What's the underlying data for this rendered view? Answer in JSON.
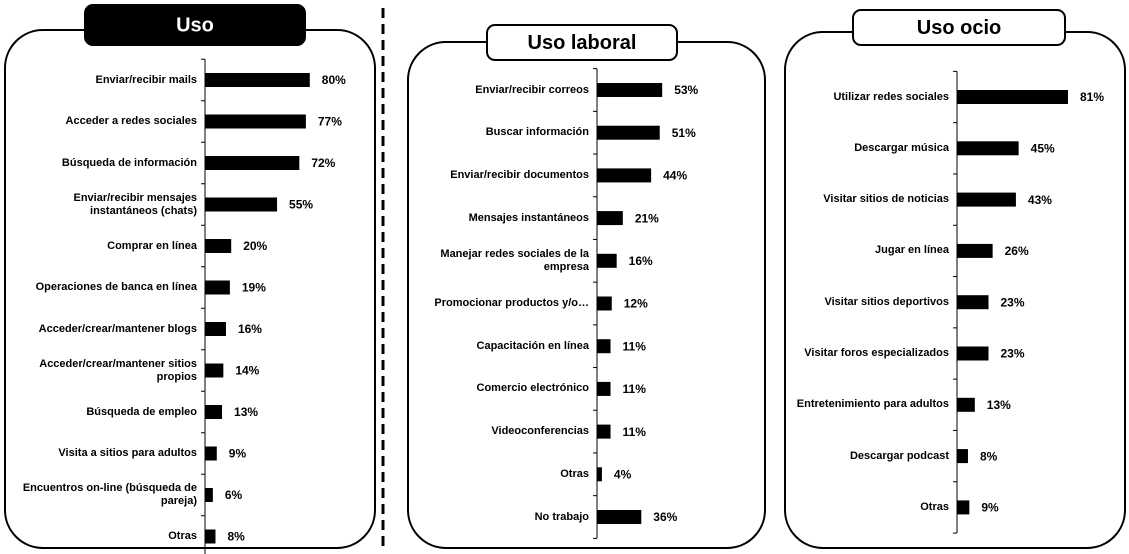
{
  "chart_data": [
    {
      "type": "bar",
      "title": "Uso",
      "color": "#000000",
      "categories": [
        "Enviar/recibir mails",
        "Acceder a redes sociales",
        "Búsqueda de información",
        "Enviar/recibir mensajes instantáneos (chats)",
        "Comprar en línea",
        "Operaciones de banca en línea",
        "Acceder/crear/mantener blogs",
        "Acceder/crear/mantener sitios propios",
        "Búsqueda de empleo",
        "Visita a sitios para adultos",
        "Encuentros on-line (búsqueda de pareja)",
        "Otras"
      ],
      "values": [
        80,
        77,
        72,
        55,
        20,
        19,
        16,
        14,
        13,
        9,
        6,
        8
      ],
      "value_labels": [
        "80%",
        "77%",
        "72%",
        "55%",
        "20%",
        "19%",
        "16%",
        "14%",
        "13%",
        "9%",
        "6%",
        "8%"
      ]
    },
    {
      "type": "bar",
      "title": "Uso laboral",
      "color": "#000000",
      "categories": [
        "Enviar/recibir correos",
        "Buscar información",
        "Enviar/recibir documentos",
        "Mensajes instantáneos",
        "Manejar redes sociales de la empresa",
        "Promocionar productos y/o…",
        "Capacitación en línea",
        "Comercio electrónico",
        "Videoconferencias",
        "Otras",
        "No trabajo"
      ],
      "values": [
        53,
        51,
        44,
        21,
        16,
        12,
        11,
        11,
        11,
        4,
        36
      ],
      "value_labels": [
        "53%",
        "51%",
        "44%",
        "21%",
        "16%",
        "12%",
        "11%",
        "11%",
        "11%",
        "4%",
        "36%"
      ]
    },
    {
      "type": "bar",
      "title": "Uso ocio",
      "color": "#000000",
      "categories": [
        "Utilizar redes sociales",
        "Descargar música",
        "Visitar sitios de noticias",
        "Jugar en línea",
        "Visitar sitios deportivos",
        "Visitar foros especializados",
        "Entretenimiento para adultos",
        "Descargar podcast",
        "Otras"
      ],
      "values": [
        81,
        45,
        43,
        26,
        23,
        23,
        13,
        8,
        9
      ],
      "value_labels": [
        "81%",
        "45%",
        "43%",
        "26%",
        "23%",
        "23%",
        "13%",
        "8%",
        "9%"
      ]
    }
  ]
}
